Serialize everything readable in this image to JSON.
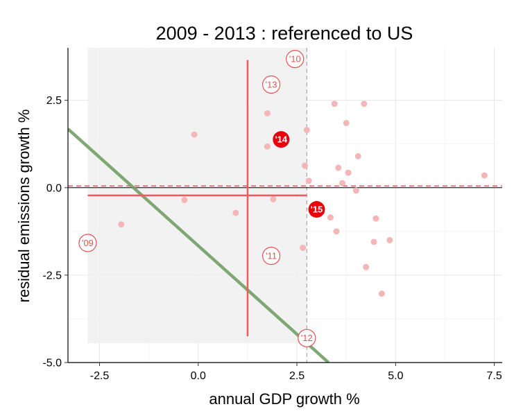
{
  "chart_data": {
    "type": "scatter",
    "title": "2009 - 2013 : referenced to US",
    "xlabel": "annual GDP growth %",
    "ylabel": "residual emissions growth %",
    "xlim": [
      -3.3,
      7.7
    ],
    "ylim": [
      -5.0,
      4.0
    ],
    "x_ticks": [
      -2.5,
      0.0,
      2.5,
      5.0,
      7.5
    ],
    "x_tick_labels": [
      "-2.5",
      "0.0",
      "2.5",
      "5.0",
      "7.5"
    ],
    "y_ticks": [
      -5.0,
      -2.5,
      0.0,
      2.5
    ],
    "y_tick_labels": [
      "-5.0",
      "-2.5",
      "0.0",
      "2.5"
    ],
    "grid": true,
    "shaded_region": {
      "x": [
        -2.8,
        2.75
      ],
      "y": [
        -4.45,
        4.0
      ]
    },
    "vline_dashed": 2.75,
    "hline_dashed": 0.05,
    "hline_solid": 0.0,
    "mean_cross": {
      "x": 1.25,
      "y": -0.22,
      "x_range": [
        -2.8,
        2.75
      ],
      "y_range": [
        -4.25,
        3.65
      ]
    },
    "trend_line": {
      "p1": [
        -3.3,
        1.68
      ],
      "p2": [
        3.3,
        -5.0
      ]
    },
    "points": [
      [
        -1.95,
        -1.05
      ],
      [
        -0.1,
        1.52
      ],
      [
        -0.35,
        -0.35
      ],
      [
        0.95,
        -0.72
      ],
      [
        1.75,
        2.13
      ],
      [
        1.75,
        1.18
      ],
      [
        1.9,
        -0.33
      ],
      [
        2.65,
        -1.72
      ],
      [
        2.7,
        0.63
      ],
      [
        2.75,
        1.65
      ],
      [
        2.8,
        0.2
      ],
      [
        3.35,
        -0.85
      ],
      [
        3.45,
        2.4
      ],
      [
        3.5,
        -1.25
      ],
      [
        3.55,
        0.57
      ],
      [
        3.65,
        0.13
      ],
      [
        3.75,
        1.85
      ],
      [
        3.8,
        0.43
      ],
      [
        4.0,
        -0.08
      ],
      [
        4.05,
        0.9
      ],
      [
        4.2,
        2.4
      ],
      [
        4.25,
        -2.27
      ],
      [
        4.45,
        -1.55
      ],
      [
        4.5,
        -0.88
      ],
      [
        4.65,
        -3.03
      ],
      [
        4.85,
        -1.5
      ],
      [
        7.25,
        0.35
      ]
    ],
    "highlighted_points": [
      {
        "label": "'14",
        "x": 2.1,
        "y": 1.38
      },
      {
        "label": "'15",
        "x": 3.0,
        "y": -0.62
      }
    ],
    "year_labels": [
      {
        "label": "'10",
        "x": 2.45,
        "y": 3.68
      },
      {
        "label": "'13",
        "x": 1.85,
        "y": 2.95
      },
      {
        "label": "'09",
        "x": -2.8,
        "y": -1.58
      },
      {
        "label": "'11",
        "x": 1.85,
        "y": -1.95
      },
      {
        "label": "'12",
        "x": 2.75,
        "y": -4.3
      }
    ],
    "colors": {
      "point": "#f4b6b6",
      "highlight": "#e8000b",
      "year_circle": "#e85050",
      "cross": "#ef5b5b",
      "trend": "#6b9a5e",
      "shade": "#f0f0f0",
      "grid": "#e6e6e6"
    }
  }
}
